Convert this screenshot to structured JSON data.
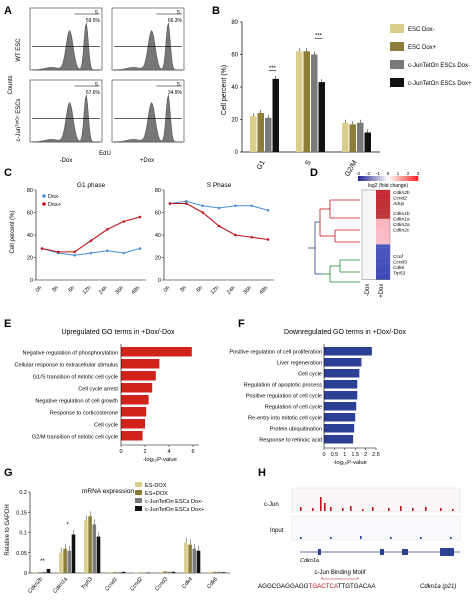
{
  "panel_labels": {
    "A": "A",
    "B": "B",
    "C": "C",
    "D": "D",
    "E": "E",
    "F": "F",
    "G": "G",
    "H": "H"
  },
  "panel_a": {
    "row_labels": [
      "WT ESC",
      "c-Junᵀᵉᵗᴼⁿ ESCs"
    ],
    "ylabel": "Counts",
    "xlabel": "EdU",
    "col_labels": [
      "-Dox",
      "+Dox"
    ],
    "gate_label": "S",
    "percents": [
      "59.5%",
      "66.3%",
      "67.6%",
      "34.9%"
    ]
  },
  "chart_data": [
    {
      "panel": "B",
      "type": "bar",
      "categories": [
        "G1",
        "S",
        "G2/M"
      ],
      "ylabel": "Cell percent (%)",
      "ylim": [
        0,
        80
      ],
      "yticks": [
        "0",
        "20",
        "40",
        "60",
        "80"
      ],
      "series": [
        {
          "name": "ESC Dox-",
          "color": "#d9cf8a",
          "values": [
            22,
            62,
            18
          ]
        },
        {
          "name": "ESC Dox+",
          "color": "#8b7d3a",
          "values": [
            24,
            62,
            17
          ]
        },
        {
          "name": "c-JunTetOn ESCs Dox-",
          "color": "#7a7a7a",
          "values": [
            21,
            60,
            18
          ]
        },
        {
          "name": "c-JunTetOn ESCs Dox+",
          "color": "#111111",
          "values": [
            45,
            43,
            12
          ]
        }
      ],
      "annotations": [
        "***",
        "***"
      ]
    },
    {
      "panel": "C",
      "type": "line",
      "charts": [
        {
          "title": "G1 phase",
          "x": [
            "0h",
            "3h",
            "6h",
            "12h",
            "24h",
            "36h",
            "48h"
          ],
          "series": [
            {
              "name": "Dox-",
              "color": "#4a90d9",
              "values": [
                28,
                24,
                22,
                24,
                26,
                24,
                28
              ]
            },
            {
              "name": "Dox+",
              "color": "#c0141b",
              "values": [
                28,
                25,
                25,
                35,
                45,
                52,
                56
              ]
            }
          ]
        },
        {
          "title": "S Phase",
          "x": [
            "0h",
            "3h",
            "6h",
            "12h",
            "24h",
            "36h",
            "48h"
          ],
          "series": [
            {
              "name": "Dox-",
              "color": "#4a90d9",
              "values": [
                68,
                70,
                66,
                64,
                66,
                66,
                62
              ]
            },
            {
              "name": "Dox+",
              "color": "#c0141b",
              "values": [
                68,
                68,
                60,
                48,
                40,
                38,
                36
              ]
            }
          ]
        }
      ],
      "ylabel": "Cell percent (%)",
      "ylim": [
        0,
        80
      ],
      "yticks": [
        "0",
        "20",
        "40",
        "60",
        "80"
      ]
    },
    {
      "panel": "E",
      "type": "bar",
      "title": "Upregulated GO terms in +Dox/-Dox",
      "xlabel": "-log₁₀P-value",
      "xticks": [
        "0",
        "2",
        "4",
        "6"
      ],
      "xlim": [
        0,
        6.5
      ],
      "color": "#d0241b",
      "categories": [
        "Negative regulation of phosphorylation",
        "Cellular response to extracellular stimulus",
        "G1/S transition of mitotic cell cycle",
        "Cell cycle arrest",
        "Negative regulation of cell growth",
        "Response to corticosterone",
        "Cell cycle",
        "G2/M transition of mitotic cell cycle"
      ],
      "values": [
        5.9,
        3.2,
        2.9,
        2.6,
        2.3,
        2.1,
        2.0,
        1.8
      ]
    },
    {
      "panel": "F",
      "type": "bar",
      "title": "Downregulated GO terms in +Dox/-Dox",
      "xlabel": "-log₁₀P-value",
      "xticks": [
        "0",
        "0.5",
        "1",
        "1.5",
        "2",
        "2.5"
      ],
      "xlim": [
        0,
        2.5
      ],
      "color": "#2b3f95",
      "categories": [
        "Positive regulation of cell proliferation",
        "Liver regeneration",
        "Cell cycle",
        "Regulation of apoptotic process",
        "Positive regulation of cell cycle",
        "Regulation of cell cycle",
        "Re-entry into mitotic cell cycle",
        "Protein ubiquitination",
        "Response to retinoic acid"
      ],
      "values": [
        2.3,
        1.8,
        1.7,
        1.6,
        1.6,
        1.55,
        1.5,
        1.45,
        1.4
      ]
    },
    {
      "panel": "G",
      "type": "bar",
      "title": "mRNA expression",
      "ylabel": "Relative to GAPDH",
      "ylim": [
        0,
        0.2
      ],
      "yticks": [
        "0",
        "0.05",
        "0.1",
        "0.15",
        "0.2"
      ],
      "categories": [
        "Cdkn2b",
        "Cdkn1a",
        "Trp53",
        "Ccnd1",
        "Ccnd2",
        "Ccnd3",
        "Cdk4",
        "Cdk6"
      ],
      "series": [
        {
          "name": "ES-DOX",
          "color": "#d9cf8a",
          "values": [
            0.002,
            0.05,
            0.13,
            0.002,
            0.001,
            0.003,
            0.075,
            0.003
          ]
        },
        {
          "name": "ES+DOX",
          "color": "#8b7d3a",
          "values": [
            0.002,
            0.06,
            0.14,
            0.002,
            0.001,
            0.004,
            0.07,
            0.003
          ]
        },
        {
          "name": "c-JunTetOn ESCs Dox-",
          "color": "#7a7a7a",
          "values": [
            0.003,
            0.055,
            0.12,
            0.002,
            0.001,
            0.003,
            0.06,
            0.003
          ]
        },
        {
          "name": "c-JunTetOn ESCs Dox+",
          "color": "#111111",
          "values": [
            0.01,
            0.095,
            0.09,
            0.003,
            0.001,
            0.003,
            0.055,
            0.002
          ]
        }
      ],
      "annotations": [
        "**",
        "*"
      ]
    }
  ],
  "panel_d": {
    "legend_ticks": [
      "-3",
      "-2",
      "-1",
      "0",
      "1",
      "2",
      "3"
    ],
    "legend_label": "log2 (fold change)",
    "up_genes": [
      "Cdkn2b",
      "Ccnd2",
      "Adrip"
    ],
    "mid_genes": [
      "Cdkn1b",
      "Cdkn1a",
      "Cdkn2a",
      "Cdkn2c"
    ],
    "down_genes": [
      "Ccnf",
      "Ccnd3",
      "Cdk6",
      "Trp53"
    ],
    "col_labels": [
      "-Dox",
      "+Dox"
    ]
  },
  "panel_h": {
    "track_labels": [
      "c-Jun",
      "Input"
    ],
    "gene": "Cdkn1a",
    "motif_title": "c-Jun Binding Motif",
    "sequence_pre": "AGGCGAGGAGG",
    "sequence_motif": "TGACTCA",
    "sequence_post": "TTGTGACAA",
    "gene_note": "Cdkn1a (p21)"
  },
  "units": {
    "c_jun_super": "TetOn"
  }
}
